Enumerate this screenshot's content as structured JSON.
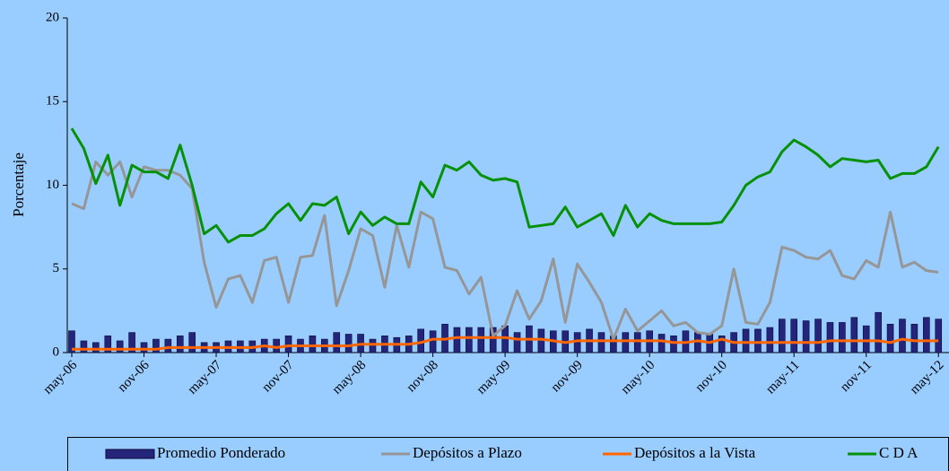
{
  "chart_data": {
    "type": "combo",
    "y_label": "Porcentaje",
    "categories": [
      "may-06",
      null,
      null,
      null,
      null,
      null,
      "nov-06",
      null,
      null,
      null,
      null,
      null,
      "may-07",
      null,
      null,
      null,
      null,
      null,
      "nov-07",
      null,
      null,
      null,
      null,
      null,
      "may-08",
      null,
      null,
      null,
      null,
      null,
      "nov-08",
      null,
      null,
      null,
      null,
      null,
      "may-09",
      null,
      null,
      null,
      null,
      null,
      "nov-09",
      null,
      null,
      null,
      null,
      null,
      "may-10",
      null,
      null,
      null,
      null,
      null,
      "nov-10",
      null,
      null,
      null,
      null,
      null,
      "may-11",
      null,
      null,
      null,
      null,
      null,
      "nov-11",
      null,
      null,
      null,
      null,
      null,
      "may-12"
    ],
    "ylim": [
      0,
      20
    ],
    "yticks": [
      0,
      5,
      10,
      15,
      20
    ],
    "grid": false,
    "legend": "bottom",
    "series": [
      {
        "name": "Promedio Ponderado",
        "type": "bar",
        "color": "#24247a",
        "values": [
          1.3,
          0.7,
          0.6,
          1.0,
          0.7,
          1.2,
          0.6,
          0.8,
          0.8,
          1.0,
          1.2,
          0.6,
          0.6,
          0.7,
          0.7,
          0.7,
          0.8,
          0.8,
          1.0,
          0.8,
          1.0,
          0.8,
          1.2,
          1.1,
          1.1,
          0.8,
          1.0,
          0.9,
          1.0,
          1.4,
          1.3,
          1.7,
          1.5,
          1.5,
          1.5,
          1.5,
          1.6,
          1.2,
          1.6,
          1.4,
          1.3,
          1.3,
          1.2,
          1.4,
          1.2,
          1.0,
          1.2,
          1.2,
          1.3,
          1.1,
          1.0,
          1.3,
          1.2,
          1.1,
          1.0,
          1.2,
          1.4,
          1.4,
          1.5,
          2.0,
          2.0,
          1.9,
          2.0,
          1.8,
          1.8,
          2.1,
          1.6,
          2.4,
          1.7,
          2.0,
          1.7,
          2.1,
          2.0
        ]
      },
      {
        "name": "Depósitos a Plazo",
        "type": "line",
        "color": "#969696",
        "values": [
          8.9,
          8.6,
          11.4,
          10.6,
          11.4,
          9.3,
          11.1,
          10.9,
          10.9,
          10.6,
          9.8,
          5.4,
          2.7,
          4.4,
          4.6,
          3.0,
          5.5,
          5.7,
          3.0,
          5.7,
          5.8,
          8.2,
          2.8,
          4.9,
          7.4,
          7.0,
          3.9,
          7.6,
          5.1,
          8.4,
          8.0,
          5.1,
          4.9,
          3.5,
          4.5,
          1.0,
          1.6,
          3.7,
          2.0,
          3.1,
          5.6,
          1.8,
          5.3,
          4.2,
          3.0,
          0.8,
          2.6,
          1.3,
          1.9,
          2.5,
          1.6,
          1.8,
          1.2,
          1.1,
          1.6,
          5.0,
          1.8,
          1.7,
          3.0,
          6.3,
          6.1,
          5.7,
          5.6,
          6.1,
          4.6,
          4.4,
          5.5,
          5.1,
          8.4,
          5.1,
          5.4,
          4.9,
          4.8
        ]
      },
      {
        "name": "Depósitos a la Vista",
        "type": "line",
        "color": "#ff6600",
        "values": [
          0.2,
          0.2,
          0.2,
          0.2,
          0.2,
          0.2,
          0.2,
          0.2,
          0.3,
          0.3,
          0.3,
          0.3,
          0.3,
          0.3,
          0.3,
          0.3,
          0.4,
          0.3,
          0.4,
          0.4,
          0.4,
          0.4,
          0.4,
          0.4,
          0.5,
          0.5,
          0.5,
          0.5,
          0.5,
          0.6,
          0.8,
          0.8,
          0.9,
          0.9,
          0.9,
          0.9,
          0.9,
          0.8,
          0.8,
          0.8,
          0.7,
          0.6,
          0.7,
          0.7,
          0.7,
          0.7,
          0.7,
          0.7,
          0.7,
          0.7,
          0.6,
          0.6,
          0.7,
          0.6,
          0.8,
          0.6,
          0.6,
          0.6,
          0.6,
          0.6,
          0.6,
          0.6,
          0.6,
          0.7,
          0.7,
          0.7,
          0.7,
          0.7,
          0.6,
          0.8,
          0.7,
          0.7,
          0.7
        ]
      },
      {
        "name": "C D A",
        "type": "line",
        "color": "#079107",
        "values": [
          13.4,
          12.2,
          10.1,
          11.8,
          8.8,
          11.2,
          10.8,
          10.8,
          10.4,
          12.4,
          10.0,
          7.1,
          7.6,
          6.6,
          7.0,
          7.0,
          7.4,
          8.3,
          8.9,
          7.9,
          8.9,
          8.8,
          9.3,
          7.1,
          8.4,
          7.6,
          8.1,
          7.7,
          7.7,
          10.2,
          9.3,
          11.2,
          10.9,
          11.4,
          10.6,
          10.3,
          10.4,
          10.2,
          7.5,
          7.6,
          7.7,
          8.7,
          7.5,
          7.9,
          8.3,
          7.0,
          8.8,
          7.5,
          8.3,
          7.9,
          7.7,
          7.7,
          7.7,
          7.7,
          7.8,
          8.8,
          10.0,
          10.5,
          10.8,
          12.0,
          12.7,
          12.3,
          11.8,
          11.1,
          11.6,
          11.5,
          11.4,
          11.5,
          10.4,
          10.7,
          10.7,
          11.1,
          12.3
        ]
      }
    ]
  }
}
